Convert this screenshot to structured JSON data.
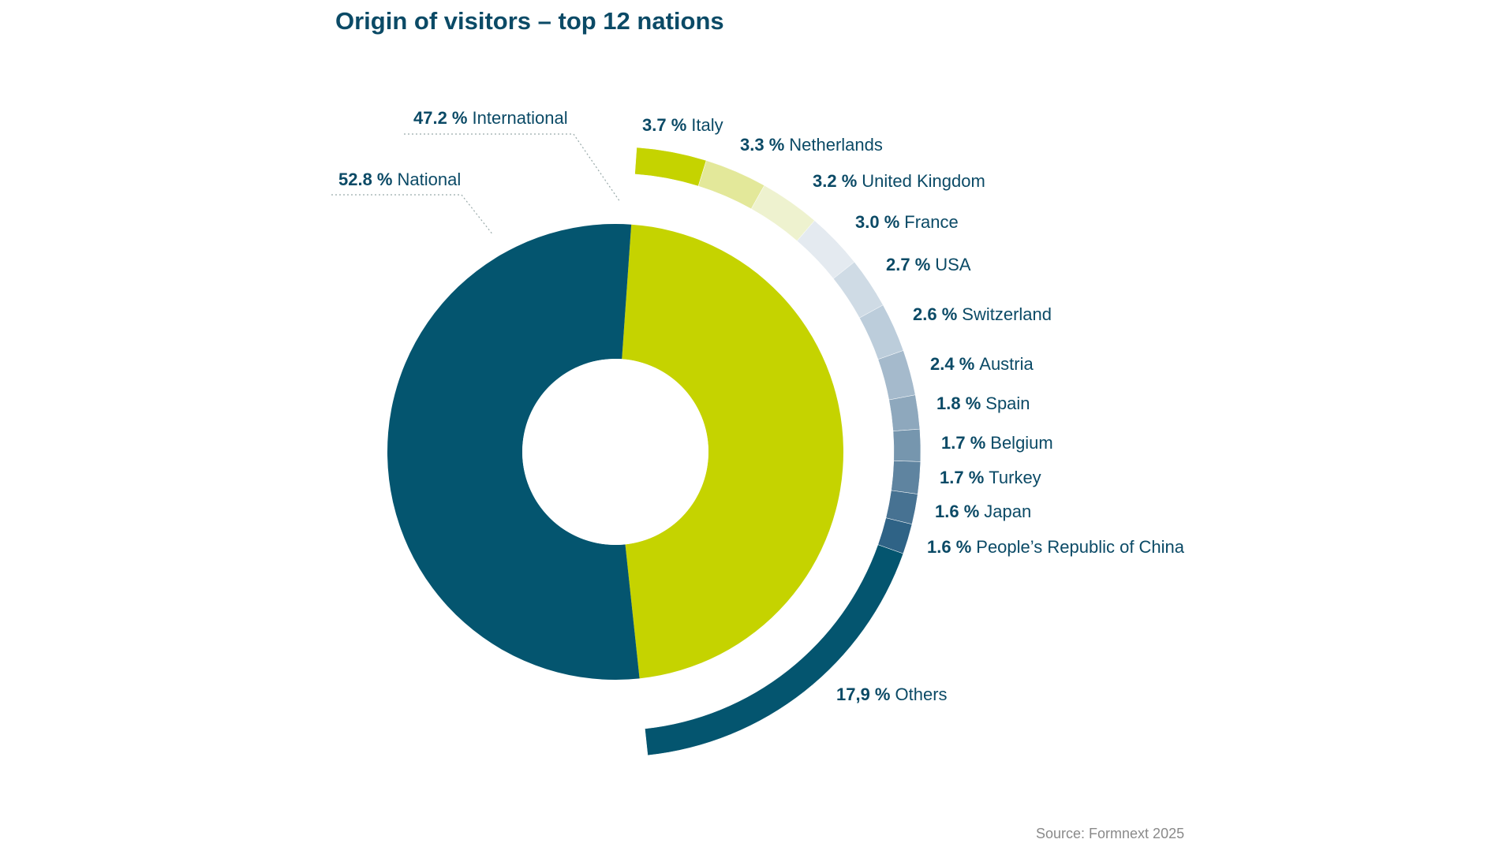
{
  "chart_data": {
    "type": "pie",
    "title": "Origin of visitors – top 12 nations",
    "source": "Source: Formnext 2025",
    "rings": [
      {
        "categories": [
          "National",
          "International"
        ],
        "values": [
          52.8,
          47.2
        ],
        "value_labels": [
          "52.8 %",
          "47.2 %"
        ],
        "colors": [
          "#04556f",
          "#c5d300"
        ]
      },
      {
        "categories": [
          "Italy",
          "Netherlands",
          "United Kingdom",
          "France",
          "USA",
          "Switzerland",
          "Austria",
          "Spain",
          "Belgium",
          "Turkey",
          "Japan",
          "People’s Republic of China",
          "Others"
        ],
        "values": [
          3.7,
          3.3,
          3.2,
          3.0,
          2.7,
          2.6,
          2.4,
          1.8,
          1.7,
          1.7,
          1.6,
          1.6,
          17.9
        ],
        "value_labels": [
          "3.7 %",
          "3.3 %",
          "3.2 %",
          "3.0 %",
          "2.7 %",
          "2.6 %",
          "2.4 %",
          "1.8 %",
          "1.7 %",
          "1.7 %",
          "1.6 %",
          "1.6 %",
          "17,9 %"
        ],
        "colors": [
          "#c5d300",
          "#e3e89a",
          "#eef2cf",
          "#e4eaf0",
          "#cfdbe5",
          "#bccddb",
          "#a5bacc",
          "#8ea8bd",
          "#7696ae",
          "#5f84a0",
          "#477292",
          "#2f6386",
          "#04556f"
        ]
      }
    ]
  }
}
